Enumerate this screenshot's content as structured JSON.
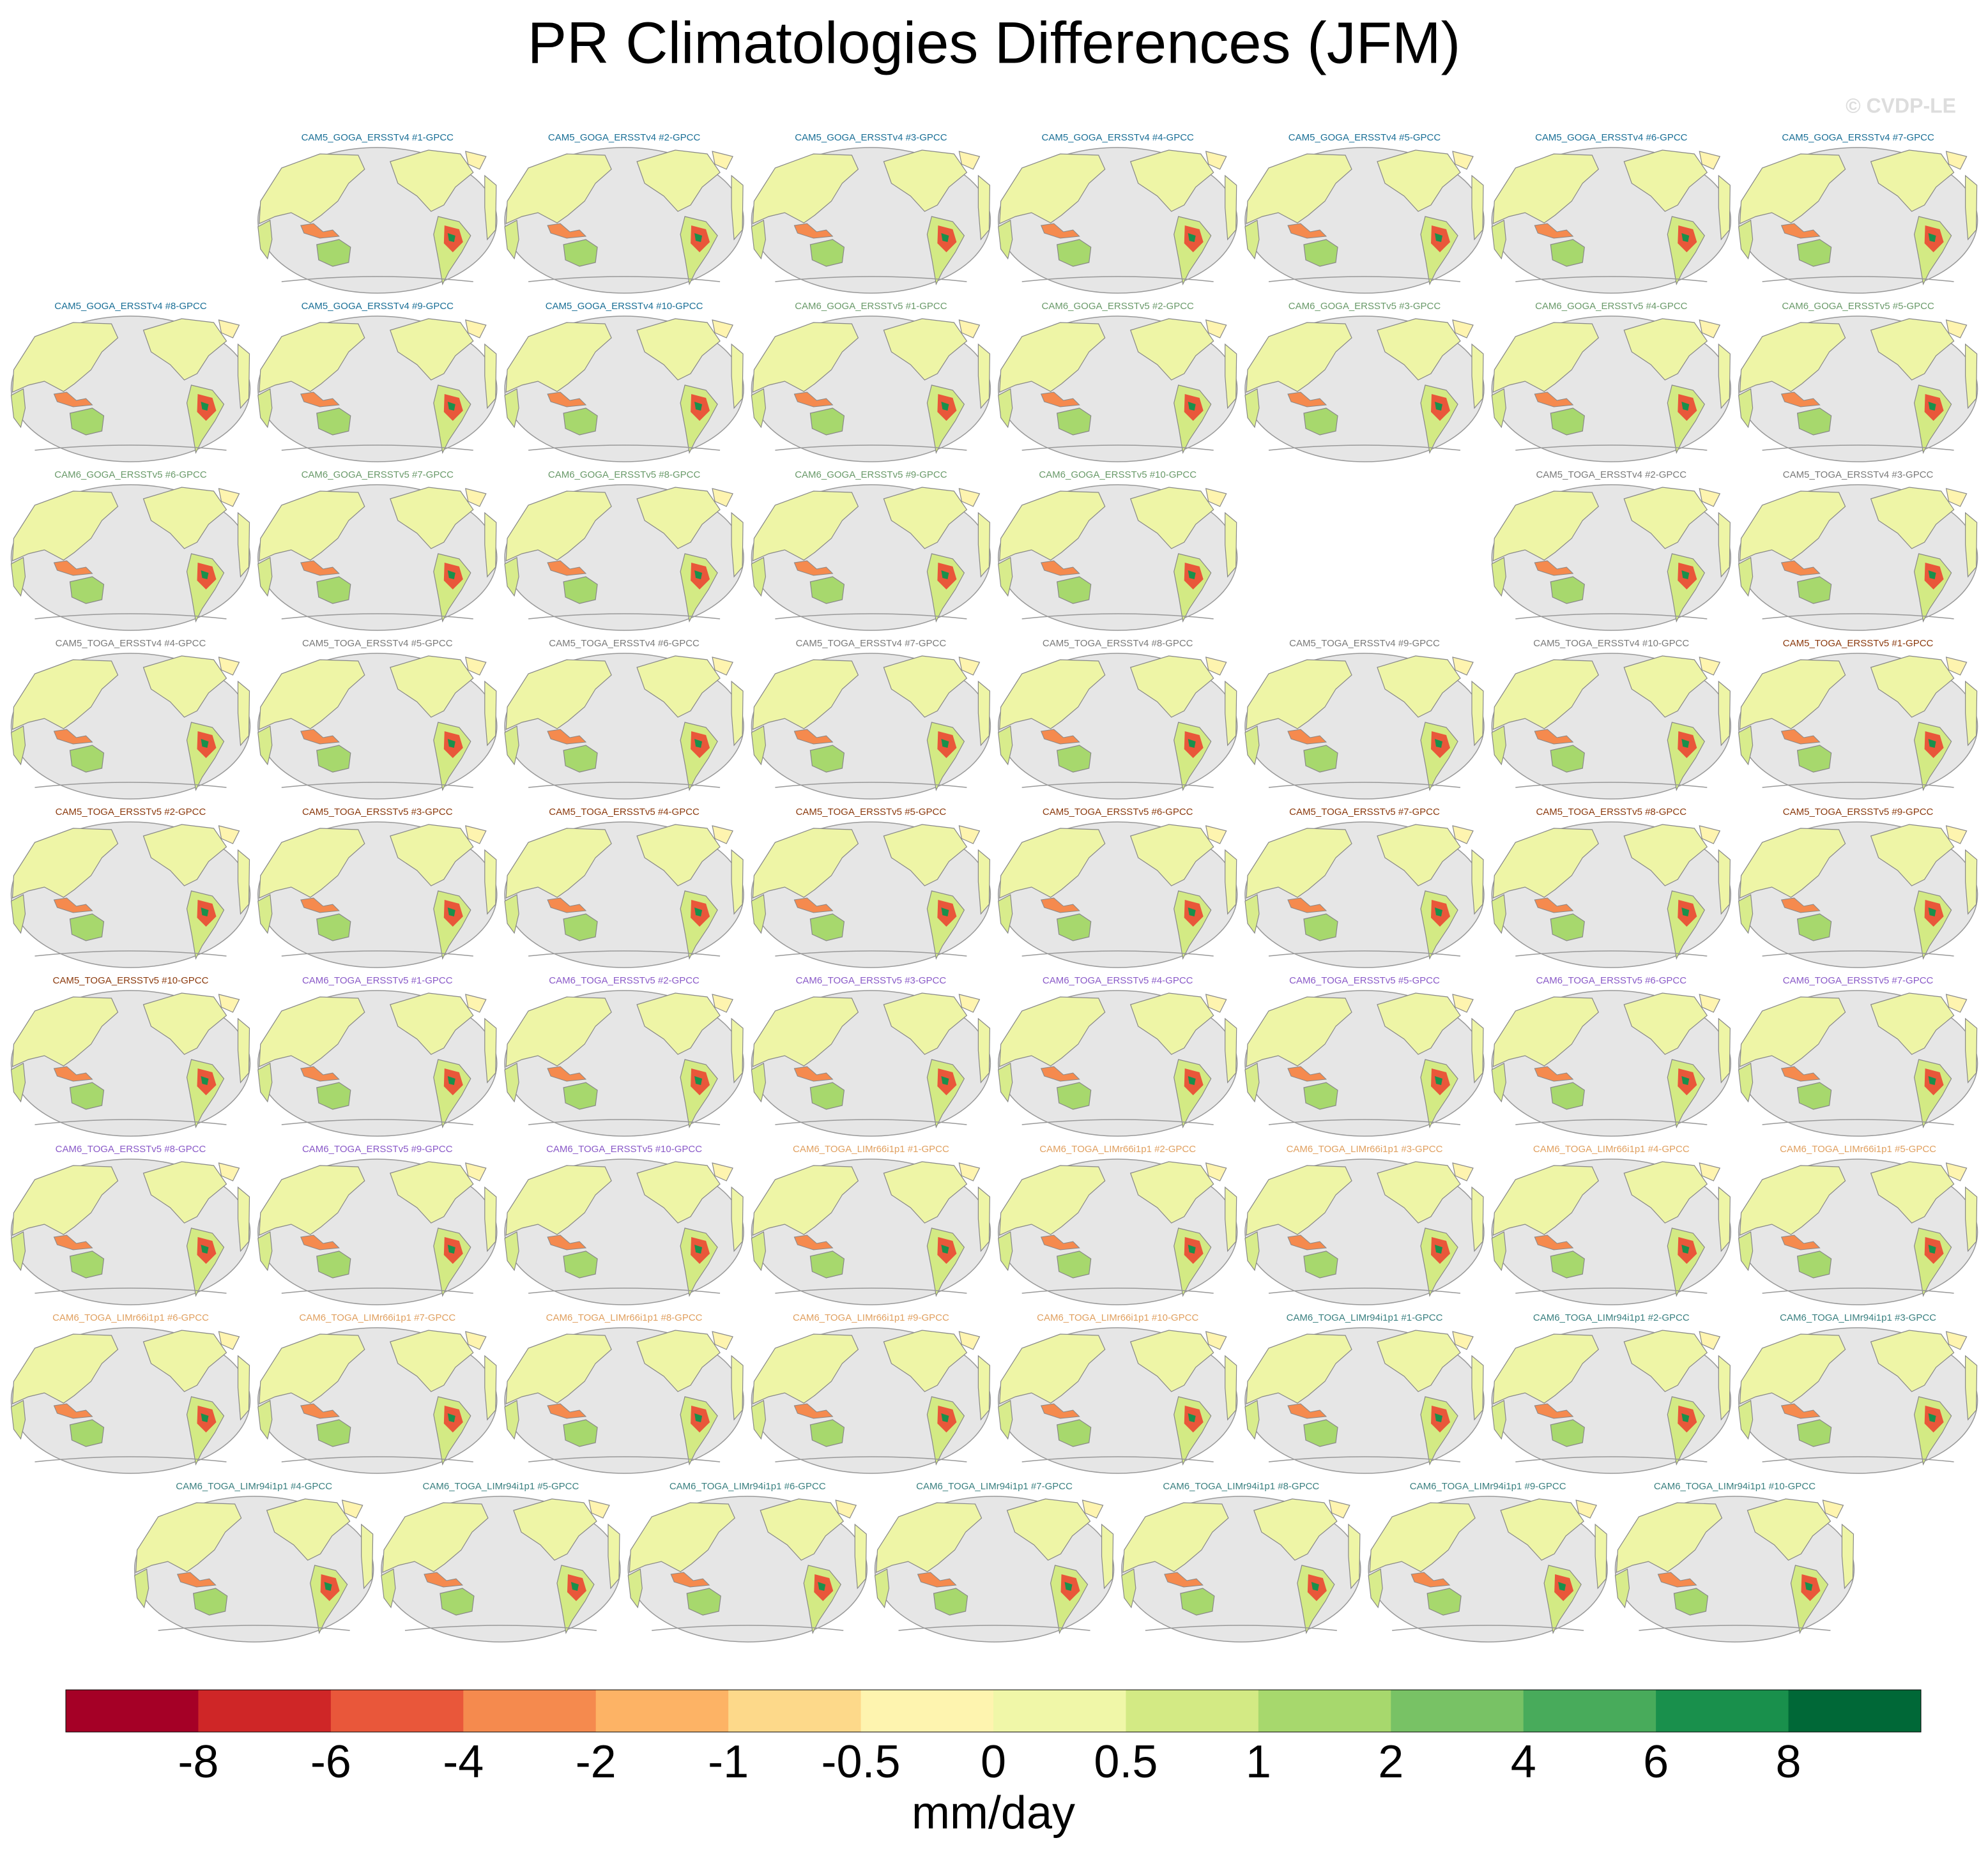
{
  "title": "PR Climatologies Differences (JFM)",
  "watermark": "© CVDP-LE",
  "groups": [
    {
      "color": "#1a6f96",
      "panels": [
        "CAM5_GOGA_ERSSTv4 #1-GPCC",
        "CAM5_GOGA_ERSSTv4 #2-GPCC",
        "CAM5_GOGA_ERSSTv4 #3-GPCC",
        "CAM5_GOGA_ERSSTv4 #4-GPCC",
        "CAM5_GOGA_ERSSTv4 #5-GPCC",
        "CAM5_GOGA_ERSSTv4 #6-GPCC",
        "CAM5_GOGA_ERSSTv4 #7-GPCC",
        "CAM5_GOGA_ERSSTv4 #8-GPCC",
        "CAM5_GOGA_ERSSTv4 #9-GPCC",
        "CAM5_GOGA_ERSSTv4 #10-GPCC"
      ]
    },
    {
      "color": "#6a9a6a",
      "panels": [
        "CAM6_GOGA_ERSSTv5 #1-GPCC",
        "CAM6_GOGA_ERSSTv5 #2-GPCC",
        "CAM6_GOGA_ERSSTv5 #3-GPCC",
        "CAM6_GOGA_ERSSTv5 #4-GPCC",
        "CAM6_GOGA_ERSSTv5 #5-GPCC",
        "CAM6_GOGA_ERSSTv5 #6-GPCC",
        "CAM6_GOGA_ERSSTv5 #7-GPCC",
        "CAM6_GOGA_ERSSTv5 #8-GPCC",
        "CAM6_GOGA_ERSSTv5 #9-GPCC",
        "CAM6_GOGA_ERSSTv5 #10-GPCC"
      ]
    },
    {
      "color": "#7a7a7a",
      "panels": [
        "CAM5_TOGA_ERSSTv4 #2-GPCC",
        "CAM5_TOGA_ERSSTv4 #3-GPCC",
        "CAM5_TOGA_ERSSTv4 #4-GPCC",
        "CAM5_TOGA_ERSSTv4 #5-GPCC",
        "CAM5_TOGA_ERSSTv4 #6-GPCC",
        "CAM5_TOGA_ERSSTv4 #7-GPCC",
        "CAM5_TOGA_ERSSTv4 #8-GPCC",
        "CAM5_TOGA_ERSSTv4 #9-GPCC",
        "CAM5_TOGA_ERSSTv4 #10-GPCC"
      ]
    },
    {
      "color": "#8b3a0e",
      "panels": [
        "CAM5_TOGA_ERSSTv5 #1-GPCC",
        "CAM5_TOGA_ERSSTv5 #2-GPCC",
        "CAM5_TOGA_ERSSTv5 #3-GPCC",
        "CAM5_TOGA_ERSSTv5 #4-GPCC",
        "CAM5_TOGA_ERSSTv5 #5-GPCC",
        "CAM5_TOGA_ERSSTv5 #6-GPCC",
        "CAM5_TOGA_ERSSTv5 #7-GPCC",
        "CAM5_TOGA_ERSSTv5 #8-GPCC",
        "CAM5_TOGA_ERSSTv5 #9-GPCC",
        "CAM5_TOGA_ERSSTv5 #10-GPCC"
      ]
    },
    {
      "color": "#8a5ac8",
      "panels": [
        "CAM6_TOGA_ERSSTv5 #1-GPCC",
        "CAM6_TOGA_ERSSTv5 #2-GPCC",
        "CAM6_TOGA_ERSSTv5 #3-GPCC",
        "CAM6_TOGA_ERSSTv5 #4-GPCC",
        "CAM6_TOGA_ERSSTv5 #5-GPCC",
        "CAM6_TOGA_ERSSTv5 #6-GPCC",
        "CAM6_TOGA_ERSSTv5 #7-GPCC",
        "CAM6_TOGA_ERSSTv5 #8-GPCC",
        "CAM6_TOGA_ERSSTv5 #9-GPCC",
        "CAM6_TOGA_ERSSTv5 #10-GPCC"
      ]
    },
    {
      "color": "#e0a060",
      "panels": [
        "CAM6_TOGA_LIMr66i1p1 #1-GPCC",
        "CAM6_TOGA_LIMr66i1p1 #2-GPCC",
        "CAM6_TOGA_LIMr66i1p1 #3-GPCC",
        "CAM6_TOGA_LIMr66i1p1 #4-GPCC",
        "CAM6_TOGA_LIMr66i1p1 #5-GPCC",
        "CAM6_TOGA_LIMr66i1p1 #6-GPCC",
        "CAM6_TOGA_LIMr66i1p1 #7-GPCC",
        "CAM6_TOGA_LIMr66i1p1 #8-GPCC",
        "CAM6_TOGA_LIMr66i1p1 #9-GPCC",
        "CAM6_TOGA_LIMr66i1p1 #10-GPCC"
      ]
    },
    {
      "color": "#3a8080",
      "panels": [
        "CAM6_TOGA_LIMr94i1p1 #1-GPCC",
        "CAM6_TOGA_LIMr94i1p1 #2-GPCC",
        "CAM6_TOGA_LIMr94i1p1 #3-GPCC",
        "CAM6_TOGA_LIMr94i1p1 #4-GPCC",
        "CAM6_TOGA_LIMr94i1p1 #5-GPCC",
        "CAM6_TOGA_LIMr94i1p1 #6-GPCC",
        "CAM6_TOGA_LIMr94i1p1 #7-GPCC",
        "CAM6_TOGA_LIMr94i1p1 #8-GPCC",
        "CAM6_TOGA_LIMr94i1p1 #9-GPCC",
        "CAM6_TOGA_LIMr94i1p1 #10-GPCC"
      ]
    }
  ],
  "colorbar": {
    "colors": [
      "#a50026",
      "#cf2627",
      "#e9573a",
      "#f58a4e",
      "#fdb365",
      "#fdd98a",
      "#fef4af",
      "#f0f7a8",
      "#d3ea84",
      "#a7d86d",
      "#78c265",
      "#48ab5b",
      "#19904c",
      "#006837"
    ],
    "ticks": [
      -8,
      -6,
      -4,
      -2,
      -1,
      -0.5,
      0,
      0.5,
      1,
      2,
      4,
      6,
      8
    ],
    "label": "mm/day"
  }
}
